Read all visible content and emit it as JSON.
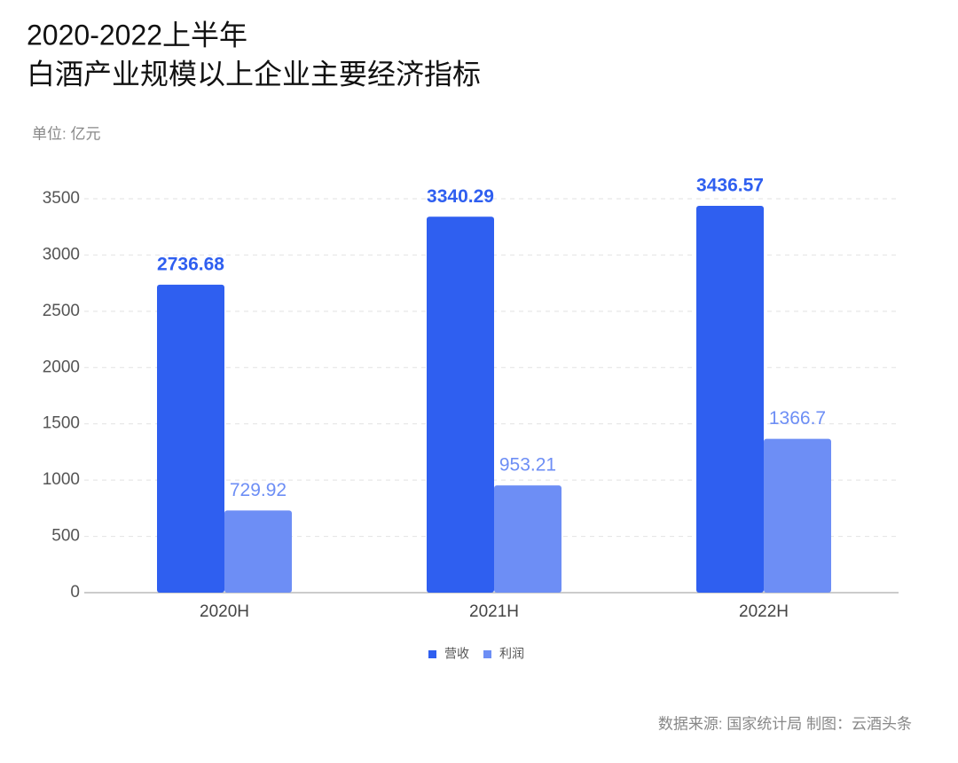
{
  "chart_data": {
    "type": "bar",
    "title": "2020-2022上半年",
    "subtitle": "白酒产业规模以上企业主要经济指标",
    "y_label": "单位: 亿元",
    "source": "数据来源: 国家统计局 制图：云酒头条",
    "categories": [
      "2020H",
      "2021H",
      "2022H"
    ],
    "series": [
      {
        "name": "营收",
        "color": "#2f5ff0",
        "values": [
          2736.68,
          3340.29,
          3436.57
        ]
      },
      {
        "name": "利润",
        "color": "#6d8ef5",
        "values": [
          729.92,
          953.21,
          1366.7
        ]
      }
    ],
    "ylim": [
      0,
      3500
    ],
    "yticks": [
      0,
      500,
      1000,
      1500,
      2000,
      2500,
      3000,
      3500
    ],
    "grid": true,
    "legend": "bottom"
  }
}
